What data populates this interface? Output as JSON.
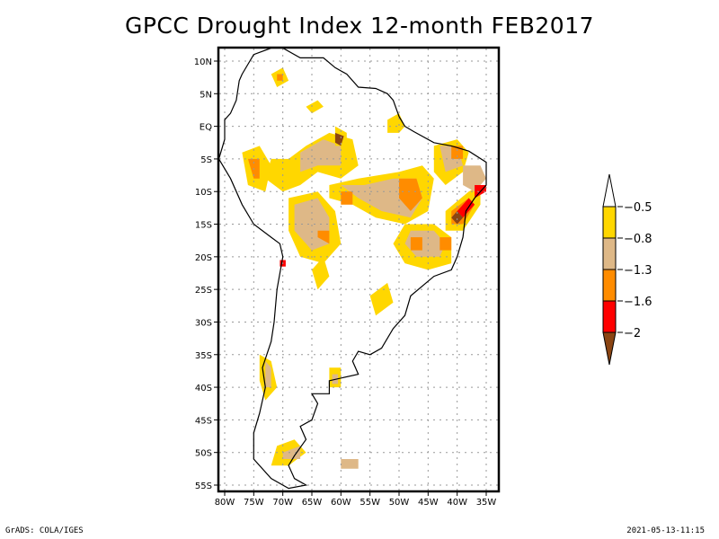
{
  "title": "GPCC Drought Index 12-month FEB2017",
  "footer": {
    "left": "GrADS: COLA/IGES",
    "right": "2021-05-13-11:15"
  },
  "map": {
    "region": "South America",
    "lon_range": [
      -80,
      -35
    ],
    "lat_range": [
      -55,
      10
    ],
    "y_ticks": [
      "10N",
      "5N",
      "EQ",
      "5S",
      "10S",
      "15S",
      "20S",
      "25S",
      "30S",
      "35S",
      "40S",
      "45S",
      "50S",
      "55S"
    ],
    "y_tick_lats": [
      10,
      5,
      0,
      -5,
      -10,
      -15,
      -20,
      -25,
      -30,
      -35,
      -40,
      -45,
      -50,
      -55
    ],
    "x_ticks": [
      "80W",
      "75W",
      "70W",
      "65W",
      "60W",
      "55W",
      "50W",
      "45W",
      "40W",
      "35W"
    ],
    "x_tick_lons": [
      -80,
      -75,
      -70,
      -65,
      -60,
      -55,
      -50,
      -45,
      -40,
      -35
    ],
    "grid": "dotted"
  },
  "colorbar": {
    "labels": [
      "-0.5",
      "-0.8",
      "-1.3",
      "-1.6",
      "-2"
    ],
    "bins": [
      {
        "range": "> -0.5",
        "color": "#ffffff"
      },
      {
        "range": "-0.8 to -0.5",
        "color": "#ffd700"
      },
      {
        "range": "-1.3 to -0.8",
        "color": "#deb887"
      },
      {
        "range": "-1.6 to -1.3",
        "color": "#ff8c00"
      },
      {
        "range": "-2 to -1.6",
        "color": "#ff0000"
      },
      {
        "range": "< -2",
        "color": "#8b4513"
      }
    ]
  },
  "patches": [
    {
      "level": 1,
      "pts": [
        [
          -69,
          -5
        ],
        [
          -66,
          -3
        ],
        [
          -62,
          -1
        ],
        [
          -58,
          -2
        ],
        [
          -57,
          -6
        ],
        [
          -60,
          -8
        ],
        [
          -64,
          -7
        ],
        [
          -67,
          -9
        ],
        [
          -70,
          -10
        ],
        [
          -73,
          -8
        ],
        [
          -72,
          -5
        ]
      ]
    },
    {
      "level": 2,
      "pts": [
        [
          -67,
          -4
        ],
        [
          -63,
          -2
        ],
        [
          -60,
          -3
        ],
        [
          -60,
          -6
        ],
        [
          -64,
          -6
        ],
        [
          -67,
          -7
        ]
      ]
    },
    {
      "level": 1,
      "pts": [
        [
          -62,
          -9
        ],
        [
          -57,
          -8
        ],
        [
          -50,
          -7
        ],
        [
          -46,
          -6
        ],
        [
          -44,
          -8
        ],
        [
          -45,
          -13
        ],
        [
          -49,
          -15
        ],
        [
          -54,
          -14
        ],
        [
          -58,
          -12
        ],
        [
          -62,
          -11
        ]
      ]
    },
    {
      "level": 2,
      "pts": [
        [
          -60,
          -9
        ],
        [
          -56,
          -9
        ],
        [
          -51,
          -8
        ],
        [
          -47,
          -8
        ],
        [
          -46,
          -11
        ],
        [
          -48,
          -14
        ],
        [
          -53,
          -13
        ],
        [
          -57,
          -11
        ]
      ]
    },
    {
      "level": 3,
      "pts": [
        [
          -50,
          -8
        ],
        [
          -47,
          -8
        ],
        [
          -46,
          -11
        ],
        [
          -48,
          -13
        ],
        [
          -50,
          -11
        ]
      ]
    },
    {
      "level": 3,
      "pts": [
        [
          -60,
          -10
        ],
        [
          -58,
          -10
        ],
        [
          -58,
          -12
        ],
        [
          -60,
          -12
        ]
      ]
    },
    {
      "level": 1,
      "pts": [
        [
          -44,
          -3
        ],
        [
          -40,
          -2
        ],
        [
          -38,
          -4
        ],
        [
          -39,
          -7
        ],
        [
          -42,
          -9
        ],
        [
          -44,
          -7
        ]
      ]
    },
    {
      "level": 2,
      "pts": [
        [
          -43,
          -3
        ],
        [
          -40,
          -3
        ],
        [
          -39,
          -6
        ],
        [
          -42,
          -7
        ]
      ]
    },
    {
      "level": 3,
      "pts": [
        [
          -41,
          -3
        ],
        [
          -39,
          -3
        ],
        [
          -39,
          -5
        ],
        [
          -41,
          -5
        ]
      ]
    },
    {
      "level": 1,
      "pts": [
        [
          -42,
          -13
        ],
        [
          -38,
          -10
        ],
        [
          -36,
          -9
        ],
        [
          -36,
          -12
        ],
        [
          -39,
          -16
        ],
        [
          -42,
          -16
        ]
      ]
    },
    {
      "level": 3,
      "pts": [
        [
          -41,
          -13
        ],
        [
          -38,
          -11
        ],
        [
          -37,
          -12
        ],
        [
          -39,
          -15
        ],
        [
          -41,
          -15
        ]
      ]
    },
    {
      "level": 4,
      "pts": [
        [
          -40,
          -13
        ],
        [
          -38,
          -11
        ],
        [
          -37,
          -12
        ],
        [
          -39,
          -14
        ]
      ]
    },
    {
      "level": 5,
      "pts": [
        [
          -41,
          -14
        ],
        [
          -40,
          -13
        ],
        [
          -39,
          -14
        ],
        [
          -40,
          -15
        ]
      ]
    },
    {
      "level": 2,
      "pts": [
        [
          -39,
          -6
        ],
        [
          -36,
          -6
        ],
        [
          -35,
          -8
        ],
        [
          -37,
          -10
        ],
        [
          -39,
          -9
        ]
      ]
    },
    {
      "level": 4,
      "pts": [
        [
          -37,
          -9
        ],
        [
          -35,
          -9
        ],
        [
          -35,
          -10
        ],
        [
          -37,
          -11
        ]
      ]
    },
    {
      "level": 1,
      "pts": [
        [
          -69,
          -11
        ],
        [
          -64,
          -10
        ],
        [
          -61,
          -13
        ],
        [
          -60,
          -18
        ],
        [
          -63,
          -21
        ],
        [
          -67,
          -20
        ],
        [
          -69,
          -16
        ]
      ]
    },
    {
      "level": 2,
      "pts": [
        [
          -68,
          -12
        ],
        [
          -64,
          -11
        ],
        [
          -62,
          -14
        ],
        [
          -62,
          -18
        ],
        [
          -65,
          -19
        ],
        [
          -68,
          -16
        ]
      ]
    },
    {
      "level": 3,
      "pts": [
        [
          -64,
          -16
        ],
        [
          -62,
          -16
        ],
        [
          -62,
          -18
        ],
        [
          -64,
          -17
        ]
      ]
    },
    {
      "level": 1,
      "pts": [
        [
          -49,
          -15
        ],
        [
          -44,
          -15
        ],
        [
          -41,
          -17
        ],
        [
          -41,
          -21
        ],
        [
          -45,
          -22
        ],
        [
          -49,
          -21
        ],
        [
          -51,
          -18
        ]
      ]
    },
    {
      "level": 2,
      "pts": [
        [
          -48,
          -16
        ],
        [
          -44,
          -16
        ],
        [
          -42,
          -18
        ],
        [
          -43,
          -20
        ],
        [
          -47,
          -20
        ],
        [
          -49,
          -18
        ]
      ]
    },
    {
      "level": 3,
      "pts": [
        [
          -48,
          -17
        ],
        [
          -46,
          -17
        ],
        [
          -46,
          -19
        ],
        [
          -48,
          -19
        ]
      ]
    },
    {
      "level": 3,
      "pts": [
        [
          -43,
          -17
        ],
        [
          -41,
          -17
        ],
        [
          -41,
          -19
        ],
        [
          -43,
          -19
        ]
      ]
    },
    {
      "level": 1,
      "pts": [
        [
          -77,
          -4
        ],
        [
          -74,
          -3
        ],
        [
          -72,
          -6
        ],
        [
          -73,
          -10
        ],
        [
          -76,
          -9
        ]
      ]
    },
    {
      "level": 3,
      "pts": [
        [
          -76,
          -5
        ],
        [
          -74,
          -5
        ],
        [
          -74,
          -8
        ],
        [
          -75,
          -8
        ]
      ]
    },
    {
      "level": 1,
      "pts": [
        [
          -61,
          0
        ],
        [
          -59,
          -1
        ],
        [
          -59,
          -3
        ],
        [
          -61,
          -3
        ]
      ]
    },
    {
      "level": 5,
      "pts": [
        [
          -61,
          -1
        ],
        [
          -59.5,
          -1.5
        ],
        [
          -60,
          -3
        ],
        [
          -61,
          -2.5
        ]
      ]
    },
    {
      "level": 1,
      "pts": [
        [
          -52,
          1
        ],
        [
          -50,
          2
        ],
        [
          -49,
          0
        ],
        [
          -50,
          -1
        ],
        [
          -52,
          -1
        ]
      ]
    },
    {
      "level": 1,
      "pts": [
        [
          -74,
          -35
        ],
        [
          -72,
          -36
        ],
        [
          -71,
          -40
        ],
        [
          -73,
          -42
        ],
        [
          -74,
          -39
        ]
      ]
    },
    {
      "level": 2,
      "pts": [
        [
          -73,
          -36
        ],
        [
          -72,
          -37
        ],
        [
          -72,
          -40
        ],
        [
          -73,
          -40
        ]
      ]
    },
    {
      "level": 1,
      "pts": [
        [
          -71,
          -49
        ],
        [
          -68,
          -48
        ],
        [
          -66,
          -50
        ],
        [
          -69,
          -52
        ],
        [
          -72,
          -52
        ]
      ]
    },
    {
      "level": 2,
      "pts": [
        [
          -70,
          -50
        ],
        [
          -67,
          -49
        ],
        [
          -67,
          -51
        ],
        [
          -70,
          -51
        ]
      ]
    },
    {
      "level": 1,
      "pts": [
        [
          -62,
          -37
        ],
        [
          -60,
          -37
        ],
        [
          -60,
          -40
        ],
        [
          -62,
          -40
        ]
      ]
    },
    {
      "level": 2,
      "pts": [
        [
          -61.5,
          -38
        ],
        [
          -60.5,
          -38
        ],
        [
          -60.5,
          -39.5
        ],
        [
          -61.5,
          -39.5
        ]
      ]
    },
    {
      "level": 2,
      "pts": [
        [
          -60,
          -51
        ],
        [
          -57,
          -51
        ],
        [
          -57,
          -52.5
        ],
        [
          -60,
          -52.5
        ]
      ]
    },
    {
      "level": 4,
      "pts": [
        [
          -70.5,
          -20.5
        ],
        [
          -69.5,
          -20.5
        ],
        [
          -69.5,
          -21.5
        ],
        [
          -70.5,
          -21.5
        ]
      ]
    },
    {
      "level": 1,
      "pts": [
        [
          -72,
          8
        ],
        [
          -70,
          9
        ],
        [
          -69,
          7
        ],
        [
          -71,
          6
        ]
      ]
    },
    {
      "level": 3,
      "pts": [
        [
          -71,
          8
        ],
        [
          -70,
          8
        ],
        [
          -70,
          7
        ],
        [
          -71,
          7
        ]
      ]
    },
    {
      "level": 1,
      "pts": [
        [
          -66,
          3
        ],
        [
          -64,
          4
        ],
        [
          -63,
          3
        ],
        [
          -65,
          2
        ]
      ]
    },
    {
      "level": 1,
      "pts": [
        [
          -55,
          -26
        ],
        [
          -52,
          -24
        ],
        [
          -51,
          -27
        ],
        [
          -54,
          -29
        ]
      ]
    },
    {
      "level": 1,
      "pts": [
        [
          -65,
          -22
        ],
        [
          -63,
          -20
        ],
        [
          -62,
          -23
        ],
        [
          -64,
          -25
        ]
      ]
    }
  ],
  "outlines": [
    [
      [
        -77,
        8
      ],
      [
        -75,
        11
      ],
      [
        -72,
        12
      ],
      [
        -70,
        12
      ],
      [
        -67,
        10.5
      ],
      [
        -63,
        10.5
      ],
      [
        -61,
        9
      ],
      [
        -59,
        8
      ],
      [
        -57,
        6
      ],
      [
        -54,
        5.8
      ],
      [
        -52,
        5
      ],
      [
        -51,
        4
      ],
      [
        -50,
        1.5
      ],
      [
        -49,
        0
      ],
      [
        -47.5,
        -0.8
      ],
      [
        -44,
        -2.5
      ],
      [
        -41,
        -3
      ],
      [
        -38,
        -3.8
      ],
      [
        -35,
        -5.5
      ],
      [
        -35,
        -9
      ],
      [
        -37,
        -11
      ],
      [
        -38.5,
        -13
      ],
      [
        -39,
        -17
      ],
      [
        -40,
        -20
      ],
      [
        -41,
        -22
      ],
      [
        -44,
        -23
      ],
      [
        -48,
        -26
      ],
      [
        -49,
        -29
      ],
      [
        -51,
        -31
      ],
      [
        -53,
        -34
      ],
      [
        -55,
        -35
      ],
      [
        -57,
        -34.5
      ],
      [
        -58,
        -36
      ],
      [
        -57,
        -38
      ],
      [
        -62,
        -39
      ],
      [
        -62,
        -41
      ],
      [
        -65,
        -41
      ],
      [
        -64,
        -42.5
      ],
      [
        -65,
        -45
      ],
      [
        -67,
        -46
      ],
      [
        -66,
        -48
      ],
      [
        -68,
        -50.5
      ],
      [
        -69,
        -52
      ],
      [
        -68,
        -54
      ],
      [
        -66,
        -55
      ],
      [
        -69,
        -55.5
      ],
      [
        -72,
        -54
      ],
      [
        -75,
        -51
      ],
      [
        -75,
        -47
      ],
      [
        -74,
        -44
      ],
      [
        -73,
        -40
      ],
      [
        -73.5,
        -37
      ],
      [
        -72,
        -33
      ],
      [
        -71.5,
        -30
      ],
      [
        -71,
        -25
      ],
      [
        -70,
        -20
      ],
      [
        -70.5,
        -18
      ],
      [
        -72,
        -17
      ],
      [
        -75,
        -15
      ],
      [
        -77,
        -12
      ],
      [
        -79,
        -8
      ],
      [
        -81,
        -5
      ],
      [
        -80,
        -2
      ],
      [
        -80,
        1
      ],
      [
        -79,
        2
      ],
      [
        -78,
        4
      ],
      [
        -77.5,
        7
      ]
    ]
  ]
}
